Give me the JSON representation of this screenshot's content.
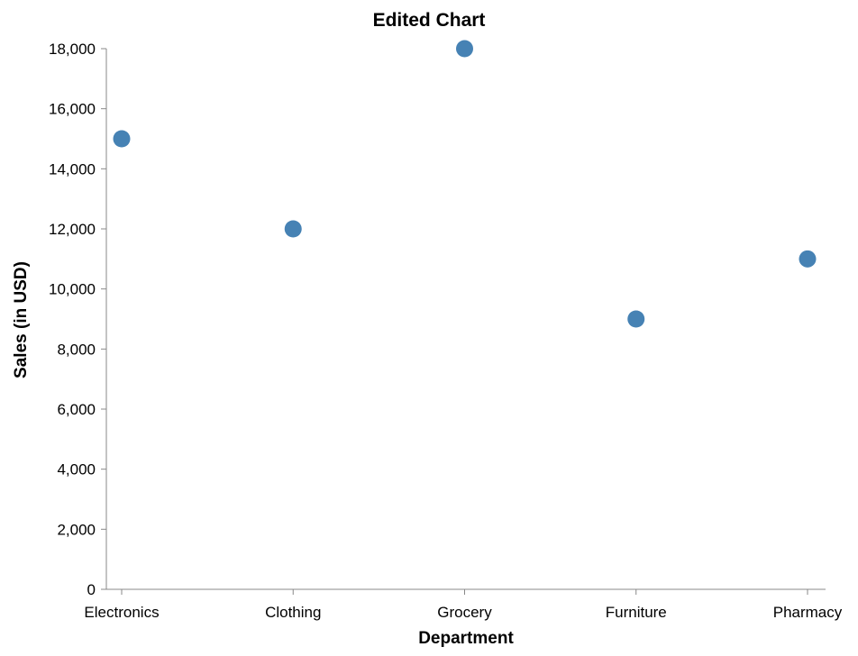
{
  "chart_data": {
    "type": "scatter",
    "title": "Edited Chart",
    "xlabel": "Department",
    "ylabel": "Sales (in USD)",
    "categories": [
      "Electronics",
      "Clothing",
      "Grocery",
      "Furniture",
      "Pharmacy"
    ],
    "values": [
      15000,
      12000,
      18000,
      9000,
      11000
    ],
    "ylim": [
      0,
      18000
    ],
    "yticks": [
      0,
      2000,
      4000,
      6000,
      8000,
      10000,
      12000,
      14000,
      16000,
      18000
    ],
    "ytick_labels": [
      "0",
      "2,000",
      "4,000",
      "6,000",
      "8,000",
      "10,000",
      "12,000",
      "14,000",
      "16,000",
      "18,000"
    ],
    "grid": false,
    "point_color": "#4682b4"
  }
}
